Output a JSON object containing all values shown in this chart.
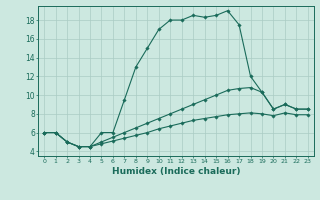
{
  "title": "",
  "xlabel": "Humidex (Indice chaleur)",
  "ylabel": "",
  "bg_color": "#cce8e0",
  "grid_color": "#aaccC4",
  "line_color": "#1a6b5a",
  "xlim": [
    -0.5,
    23.5
  ],
  "ylim": [
    3.5,
    19.5
  ],
  "xticks": [
    0,
    1,
    2,
    3,
    4,
    5,
    6,
    7,
    8,
    9,
    10,
    11,
    12,
    13,
    14,
    15,
    16,
    17,
    18,
    19,
    20,
    21,
    22,
    23
  ],
  "yticks": [
    4,
    6,
    8,
    10,
    12,
    14,
    16,
    18
  ],
  "series": [
    {
      "x": [
        0,
        1,
        2,
        3,
        4,
        5,
        6,
        7,
        8,
        9,
        10,
        11,
        12,
        13,
        14,
        15,
        16,
        17,
        18,
        19,
        20,
        21,
        22,
        23
      ],
      "y": [
        6,
        6,
        5,
        4.5,
        4.5,
        6,
        6,
        9.5,
        13,
        15,
        17,
        18,
        18,
        18.5,
        18.3,
        18.5,
        19,
        17.5,
        12,
        10.3,
        8.5,
        9,
        8.5,
        8.5
      ]
    },
    {
      "x": [
        0,
        1,
        2,
        3,
        4,
        5,
        6,
        7,
        8,
        9,
        10,
        11,
        12,
        13,
        14,
        15,
        16,
        17,
        18,
        19,
        20,
        21,
        22,
        23
      ],
      "y": [
        6,
        6,
        5,
        4.5,
        4.5,
        5,
        5.5,
        6,
        6.5,
        7,
        7.5,
        8,
        8.5,
        9,
        9.5,
        10,
        10.5,
        10.7,
        10.8,
        10.3,
        8.5,
        9,
        8.5,
        8.5
      ]
    },
    {
      "x": [
        0,
        1,
        2,
        3,
        4,
        5,
        6,
        7,
        8,
        9,
        10,
        11,
        12,
        13,
        14,
        15,
        16,
        17,
        18,
        19,
        20,
        21,
        22,
        23
      ],
      "y": [
        6,
        6,
        5,
        4.5,
        4.5,
        4.8,
        5.1,
        5.4,
        5.7,
        6.0,
        6.4,
        6.7,
        7.0,
        7.3,
        7.5,
        7.7,
        7.9,
        8.0,
        8.1,
        8.0,
        7.8,
        8.1,
        7.9,
        7.9
      ]
    }
  ]
}
